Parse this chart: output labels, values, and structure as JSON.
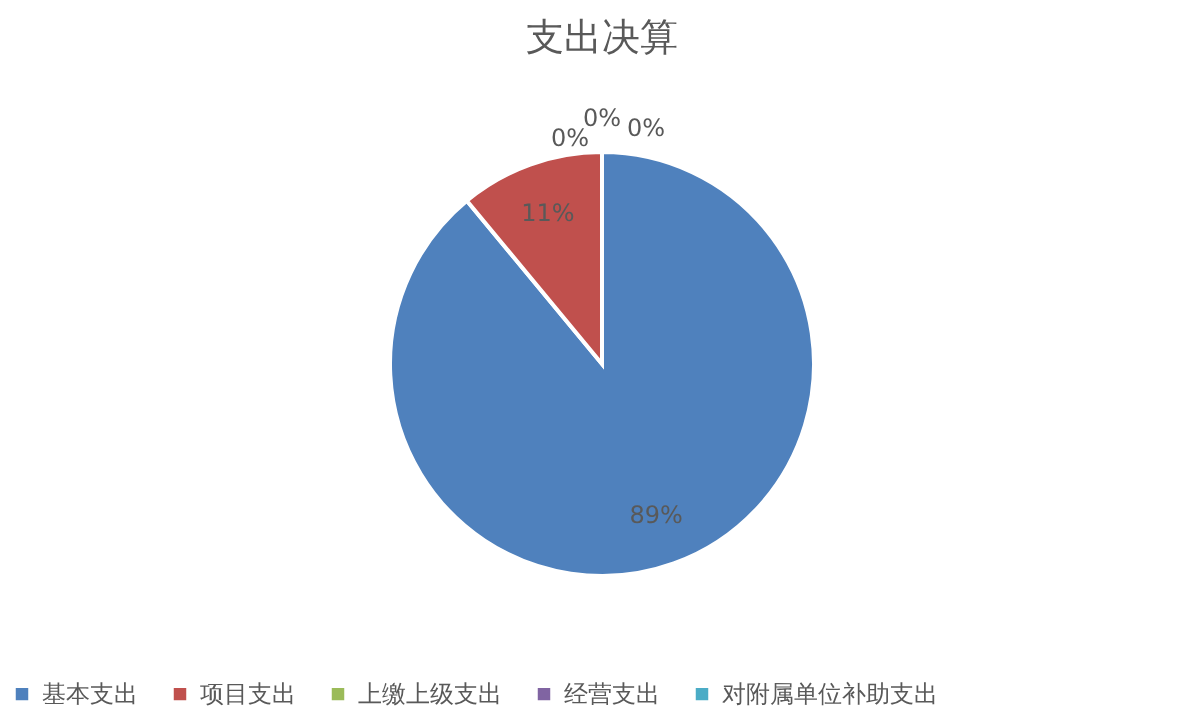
{
  "chart_data": {
    "type": "pie",
    "title": "支出决算",
    "categories": [
      "基本支出",
      "项目支出",
      "上缴上级支出",
      "经营支出",
      "对附属单位补助支出"
    ],
    "values": [
      89,
      11,
      0,
      0,
      0
    ],
    "colors": [
      "#4f81bd",
      "#c0504d",
      "#9bbb59",
      "#8064a2",
      "#4bacc6"
    ],
    "value_labels": [
      "89%",
      "11%",
      "0%",
      "0%",
      "0%"
    ],
    "legend": "bottom"
  }
}
